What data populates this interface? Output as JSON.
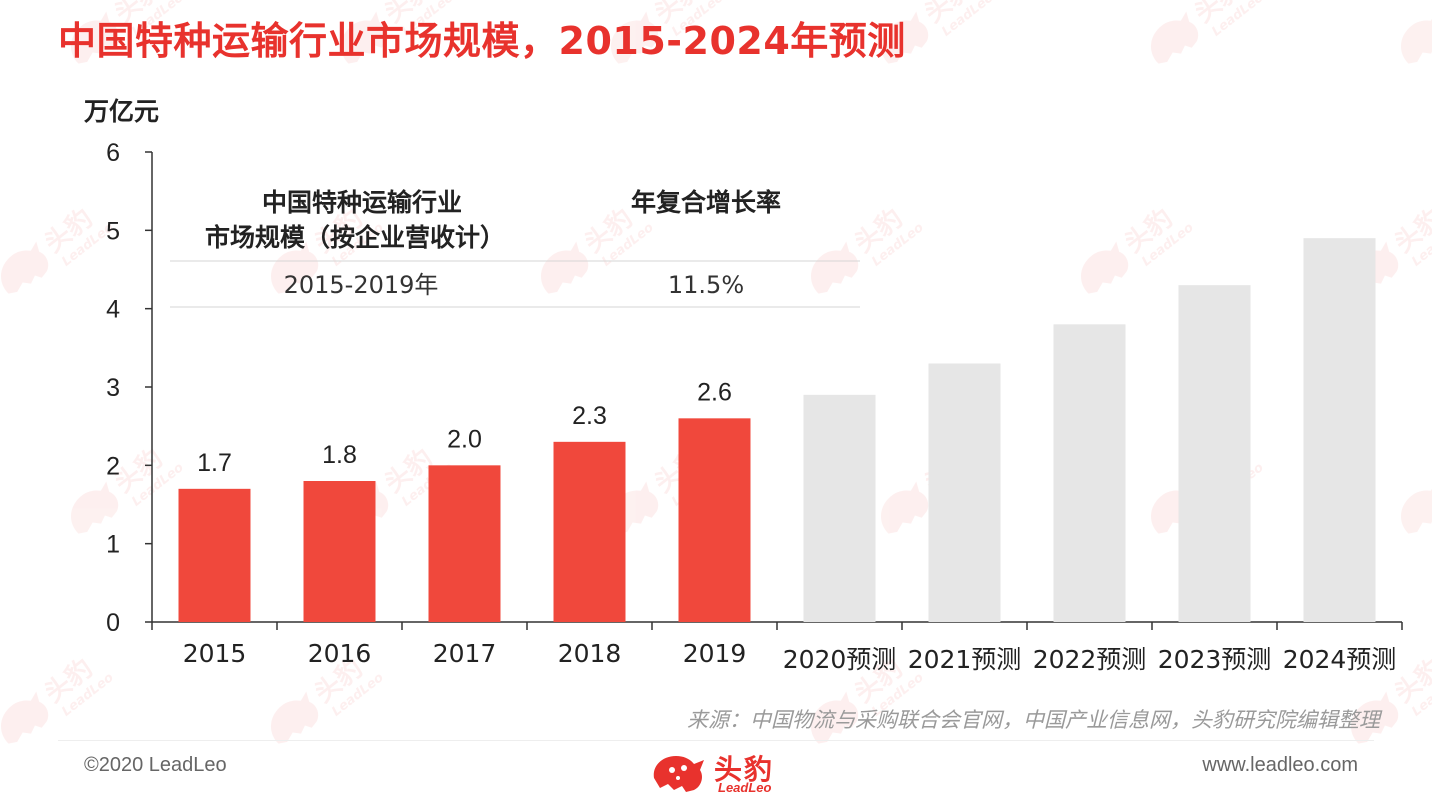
{
  "title": "中国特种运输行业市场规模，2015-2024年预测",
  "unit_label": "万亿元",
  "table": {
    "col1_header_line1": "中国特种运输行业",
    "col1_header_line2": "市场规模（按企业营收计）",
    "col2_header": "年复合增长率",
    "row_period": "2015-2019年",
    "row_cagr": "11.5%"
  },
  "source": "来源：中国物流与采购联合会官网，中国产业信息网，头豹研究院编辑整理",
  "footer": {
    "copyright": "©2020 LeadLeo",
    "website": "www.leadleo.com",
    "logo_cn": "头豹",
    "logo_en": "LeadLeo",
    "watermark_cn": "头豹",
    "watermark_en": "LeadLeo"
  },
  "colors": {
    "title": "#e8322d",
    "actual_bar": "#f0483c",
    "forecast_bar": "#e6e6e6",
    "axis": "#333333"
  },
  "chart_data": {
    "type": "bar",
    "categories": [
      "2015",
      "2016",
      "2017",
      "2018",
      "2019",
      "2020预测",
      "2021预测",
      "2022预测",
      "2023预测",
      "2024预测"
    ],
    "values": [
      1.7,
      1.8,
      2.0,
      2.3,
      2.6,
      2.9,
      3.3,
      3.8,
      4.3,
      4.9
    ],
    "data_labels": [
      "1.7",
      "1.8",
      "2.0",
      "2.3",
      "2.6",
      "",
      "",
      "",
      "",
      ""
    ],
    "forecast": [
      false,
      false,
      false,
      false,
      false,
      true,
      true,
      true,
      true,
      true
    ],
    "ylabel": "万亿元",
    "ylim": [
      0,
      6
    ],
    "yticks": [
      0,
      1,
      2,
      3,
      4,
      5,
      6
    ],
    "grid": false,
    "legend": "none"
  }
}
